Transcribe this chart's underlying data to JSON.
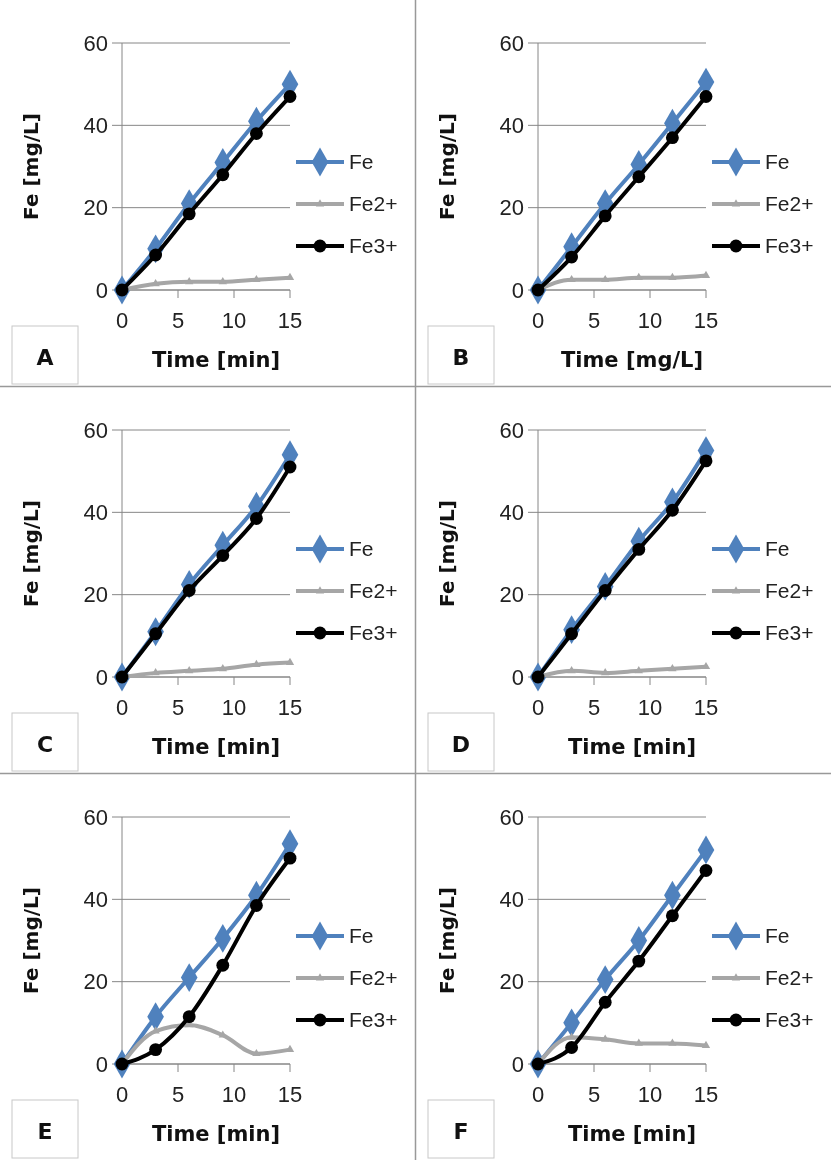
{
  "chart_data": [
    {
      "type": "line",
      "xlabel": "Time [min]",
      "ylabel": "Fe [mg/L]",
      "x": [
        0,
        3,
        6,
        9,
        12,
        15
      ],
      "xlim": [
        0,
        15
      ],
      "xticks": [
        0,
        5,
        10,
        15
      ],
      "ylim": [
        0,
        60
      ],
      "yticks": [
        0,
        20,
        40,
        60
      ],
      "grid": "y",
      "legend": "right",
      "annotations": [
        "A"
      ],
      "series": [
        {
          "name": "Fe",
          "color": "#4f81bd",
          "marker": "diamond",
          "values": [
            0,
            10,
            21,
            31,
            41,
            50
          ]
        },
        {
          "name": "Fe2+",
          "color": "#a6a6a6",
          "marker": "triangle",
          "values": [
            0,
            1.5,
            2,
            2,
            2.5,
            3
          ]
        },
        {
          "name": "Fe3+",
          "color": "#000000",
          "marker": "circle",
          "values": [
            0,
            8.5,
            18.5,
            28,
            38,
            47
          ]
        }
      ]
    },
    {
      "type": "line",
      "xlabel": "Time [mg/L]",
      "ylabel": "Fe [mg/L]",
      "x": [
        0,
        3,
        6,
        9,
        12,
        15
      ],
      "xlim": [
        0,
        15
      ],
      "xticks": [
        0,
        5,
        10,
        15
      ],
      "ylim": [
        0,
        60
      ],
      "yticks": [
        0,
        20,
        40,
        60
      ],
      "grid": "y",
      "legend": "right",
      "annotations": [
        "B"
      ],
      "series": [
        {
          "name": "Fe",
          "color": "#4f81bd",
          "marker": "diamond",
          "values": [
            0,
            10.5,
            21,
            30.5,
            40.5,
            50.5
          ]
        },
        {
          "name": "Fe2+",
          "color": "#a6a6a6",
          "marker": "triangle",
          "values": [
            0,
            2.5,
            2.5,
            3,
            3,
            3.5
          ]
        },
        {
          "name": "Fe3+",
          "color": "#000000",
          "marker": "circle",
          "values": [
            0,
            8,
            18,
            27.5,
            37,
            47
          ]
        }
      ]
    },
    {
      "type": "line",
      "xlabel": "Time [min]",
      "ylabel": "Fe [mg/L]",
      "x": [
        0,
        3,
        6,
        9,
        12,
        15
      ],
      "xlim": [
        0,
        15
      ],
      "xticks": [
        0,
        5,
        10,
        15
      ],
      "ylim": [
        0,
        60
      ],
      "yticks": [
        0,
        20,
        40,
        60
      ],
      "grid": "y",
      "legend": "right",
      "annotations": [
        "C"
      ],
      "series": [
        {
          "name": "Fe",
          "color": "#4f81bd",
          "marker": "diamond",
          "values": [
            0,
            11,
            22.5,
            32,
            41.5,
            54
          ]
        },
        {
          "name": "Fe2+",
          "color": "#a6a6a6",
          "marker": "triangle",
          "values": [
            0,
            1,
            1.5,
            2,
            3,
            3.5
          ]
        },
        {
          "name": "Fe3+",
          "color": "#000000",
          "marker": "circle",
          "values": [
            0,
            10.5,
            21,
            29.5,
            38.5,
            51
          ]
        }
      ]
    },
    {
      "type": "line",
      "xlabel": "Time [min]",
      "ylabel": "Fe [mg/L]",
      "x": [
        0,
        3,
        6,
        9,
        12,
        15
      ],
      "xlim": [
        0,
        15
      ],
      "xticks": [
        0,
        5,
        10,
        15
      ],
      "ylim": [
        0,
        60
      ],
      "yticks": [
        0,
        20,
        40,
        60
      ],
      "grid": "y",
      "legend": "right",
      "annotations": [
        "D"
      ],
      "series": [
        {
          "name": "Fe",
          "color": "#4f81bd",
          "marker": "diamond",
          "values": [
            0,
            11.5,
            22,
            33,
            42.5,
            55
          ]
        },
        {
          "name": "Fe2+",
          "color": "#a6a6a6",
          "marker": "triangle",
          "values": [
            0,
            1.5,
            1,
            1.5,
            2,
            2.5
          ]
        },
        {
          "name": "Fe3+",
          "color": "#000000",
          "marker": "circle",
          "values": [
            0,
            10.5,
            21,
            31,
            40.5,
            52.5
          ]
        }
      ]
    },
    {
      "type": "line",
      "xlabel": "Time [min]",
      "ylabel": "Fe [mg/L]",
      "x": [
        0,
        3,
        6,
        9,
        12,
        15
      ],
      "xlim": [
        0,
        15
      ],
      "xticks": [
        0,
        5,
        10,
        15
      ],
      "ylim": [
        0,
        60
      ],
      "yticks": [
        0,
        20,
        40,
        60
      ],
      "grid": "y",
      "legend": "right",
      "annotations": [
        "E"
      ],
      "series": [
        {
          "name": "Fe",
          "color": "#4f81bd",
          "marker": "diamond",
          "values": [
            0,
            11.5,
            21,
            30.5,
            41,
            53.5
          ]
        },
        {
          "name": "Fe2+",
          "color": "#a6a6a6",
          "marker": "triangle",
          "values": [
            0,
            8,
            9.5,
            7,
            2.5,
            3.5
          ]
        },
        {
          "name": "Fe3+",
          "color": "#000000",
          "marker": "circle",
          "values": [
            0,
            3.5,
            11.5,
            24,
            38.5,
            50
          ]
        }
      ]
    },
    {
      "type": "line",
      "xlabel": "Time [min]",
      "ylabel": "Fe [mg/L]",
      "x": [
        0,
        3,
        6,
        9,
        12,
        15
      ],
      "xlim": [
        0,
        15
      ],
      "xticks": [
        0,
        5,
        10,
        15
      ],
      "ylim": [
        0,
        60
      ],
      "yticks": [
        0,
        20,
        40,
        60
      ],
      "grid": "y",
      "legend": "right",
      "annotations": [
        "F"
      ],
      "series": [
        {
          "name": "Fe",
          "color": "#4f81bd",
          "marker": "diamond",
          "values": [
            0,
            10,
            20.5,
            30,
            41,
            52
          ]
        },
        {
          "name": "Fe2+",
          "color": "#a6a6a6",
          "marker": "triangle",
          "values": [
            0,
            6.5,
            6,
            5,
            5,
            4.5
          ]
        },
        {
          "name": "Fe3+",
          "color": "#000000",
          "marker": "circle",
          "values": [
            0,
            4,
            15,
            25,
            36,
            47
          ]
        }
      ]
    }
  ]
}
